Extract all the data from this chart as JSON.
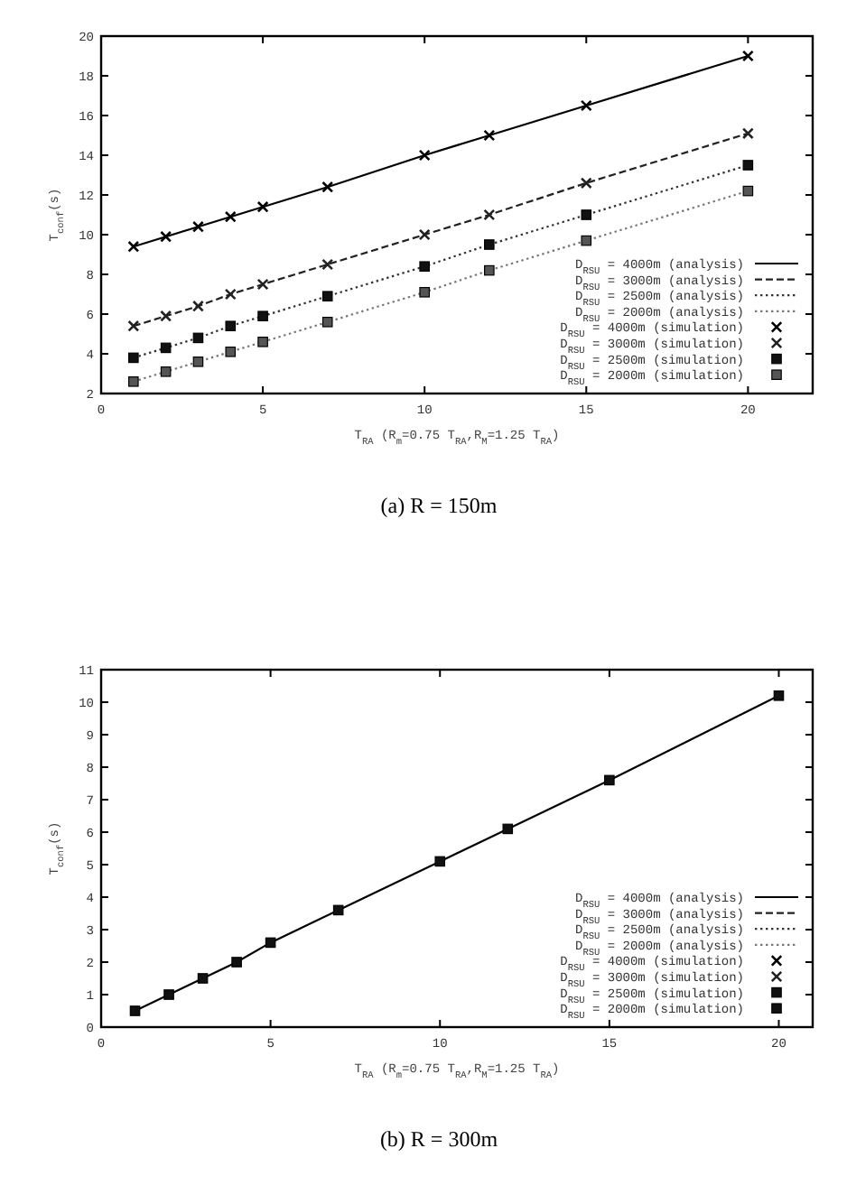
{
  "chart_data": [
    {
      "type": "line",
      "title": "(a) R = 150m",
      "xlabel": "T$_{RA}$ (R$_{m}$=0.75 T$_{RA}$,R$_{M}$=1.25 T$_{RA}$)",
      "ylabel": "T$_{conf}$(s)",
      "x": [
        1,
        2,
        3,
        4,
        5,
        7,
        10,
        12,
        15,
        20
      ],
      "xlim": [
        0,
        22
      ],
      "xticks": [
        0,
        5,
        10,
        15,
        20
      ],
      "ylim": [
        2,
        20
      ],
      "yticks": [
        2,
        4,
        6,
        8,
        10,
        12,
        14,
        16,
        18,
        20
      ],
      "legend": "bottom right",
      "series": [
        {
          "name": "D$_{RSU}$ = 4000m (analysis)",
          "color": "#000000",
          "line_style": "solid",
          "values": [
            9.4,
            9.9,
            10.4,
            10.9,
            11.4,
            12.4,
            14.0,
            15.0,
            16.5,
            19.0
          ]
        },
        {
          "name": "D$_{RSU}$ = 3000m (analysis)",
          "color": "#222222",
          "line_style": "dashed",
          "values": [
            5.4,
            5.9,
            6.4,
            7.0,
            7.5,
            8.5,
            10.0,
            11.0,
            12.6,
            15.1
          ]
        },
        {
          "name": "D$_{RSU}$ = 2500m (analysis)",
          "color": "#333333",
          "line_style": "dotted",
          "values": [
            3.8,
            4.3,
            4.8,
            5.4,
            5.9,
            6.9,
            8.4,
            9.5,
            11.0,
            13.5
          ]
        },
        {
          "name": "D$_{RSU}$ = 2000m (analysis)",
          "color": "#777777",
          "line_style": "dotted",
          "values": [
            2.6,
            3.1,
            3.6,
            4.1,
            4.6,
            5.6,
            7.1,
            8.2,
            9.7,
            12.2
          ]
        },
        {
          "type": "scatter",
          "name": "D$_{RSU}$ = 4000m (simulation)",
          "color": "#000000",
          "marker": "cross",
          "values": [
            9.4,
            9.9,
            10.4,
            10.9,
            11.4,
            12.4,
            14.0,
            15.0,
            16.5,
            19.0
          ]
        },
        {
          "type": "scatter",
          "name": "D$_{RSU}$ = 3000m (simulation)",
          "color": "#222222",
          "marker": "cross",
          "values": [
            5.4,
            5.9,
            6.4,
            7.0,
            7.5,
            8.5,
            10.0,
            11.0,
            12.6,
            15.1
          ]
        },
        {
          "type": "scatter",
          "name": "D$_{RSU}$ = 2500m (simulation)",
          "color": "#111111",
          "marker": "square",
          "values": [
            3.8,
            4.3,
            4.8,
            5.4,
            5.9,
            6.9,
            8.4,
            9.5,
            11.0,
            13.5
          ]
        },
        {
          "type": "scatter",
          "name": "D$_{RSU}$ = 2000m (simulation)",
          "color": "#555555",
          "marker": "square",
          "values": [
            2.6,
            3.1,
            3.6,
            4.1,
            4.6,
            5.6,
            7.1,
            8.2,
            9.7,
            12.2
          ]
        }
      ]
    },
    {
      "type": "line",
      "title": "(b) R = 300m",
      "xlabel": "T$_{RA}$ (R$_{m}$=0.75 T$_{RA}$,R$_{M}$=1.25 T$_{RA}$)",
      "ylabel": "T$_{conf}$(s)",
      "x": [
        1,
        2,
        3,
        4,
        5,
        7,
        10,
        12,
        15,
        20
      ],
      "xlim": [
        0,
        21
      ],
      "xticks": [
        0,
        5,
        10,
        15,
        20
      ],
      "ylim": [
        0,
        11
      ],
      "yticks": [
        0,
        1,
        2,
        3,
        4,
        5,
        6,
        7,
        8,
        9,
        10,
        11
      ],
      "legend": "bottom right",
      "series": [
        {
          "name": "D$_{RSU}$ = 4000m (analysis)",
          "color": "#000000",
          "line_style": "solid",
          "values": [
            0.5,
            1.0,
            1.5,
            2.0,
            2.6,
            3.6,
            5.1,
            6.1,
            7.6,
            10.2
          ]
        },
        {
          "name": "D$_{RSU}$ = 3000m (analysis)",
          "color": "#222222",
          "line_style": "dashed",
          "values": [
            null,
            null,
            null,
            null,
            null,
            null,
            null,
            null,
            null,
            null
          ]
        },
        {
          "name": "D$_{RSU}$ = 2500m (analysis)",
          "color": "#333333",
          "line_style": "dotted",
          "values": [
            null,
            null,
            null,
            null,
            null,
            null,
            null,
            null,
            null,
            null
          ]
        },
        {
          "name": "D$_{RSU}$ = 2000m (analysis)",
          "color": "#777777",
          "line_style": "dotted",
          "values": [
            null,
            null,
            null,
            null,
            null,
            null,
            null,
            null,
            null,
            null
          ]
        },
        {
          "type": "scatter",
          "name": "D$_{RSU}$ = 4000m (simulation)",
          "color": "#000000",
          "marker": "cross",
          "values": [
            null,
            null,
            null,
            null,
            null,
            null,
            null,
            null,
            null,
            null
          ]
        },
        {
          "type": "scatter",
          "name": "D$_{RSU}$ = 3000m (simulation)",
          "color": "#222222",
          "marker": "cross",
          "values": [
            null,
            null,
            null,
            null,
            null,
            null,
            null,
            null,
            null,
            null
          ]
        },
        {
          "type": "scatter",
          "name": "D$_{RSU}$ = 2500m (simulation)",
          "color": "#111111",
          "marker": "square",
          "values": [
            null,
            null,
            null,
            null,
            null,
            null,
            null,
            null,
            null,
            null
          ]
        },
        {
          "type": "scatter",
          "name": "D$_{RSU}$ = 2000m (simulation)",
          "color": "#111111",
          "marker": "square",
          "values": [
            0.5,
            1.0,
            1.5,
            2.0,
            2.6,
            3.6,
            5.1,
            6.1,
            7.6,
            10.2
          ]
        }
      ]
    }
  ]
}
